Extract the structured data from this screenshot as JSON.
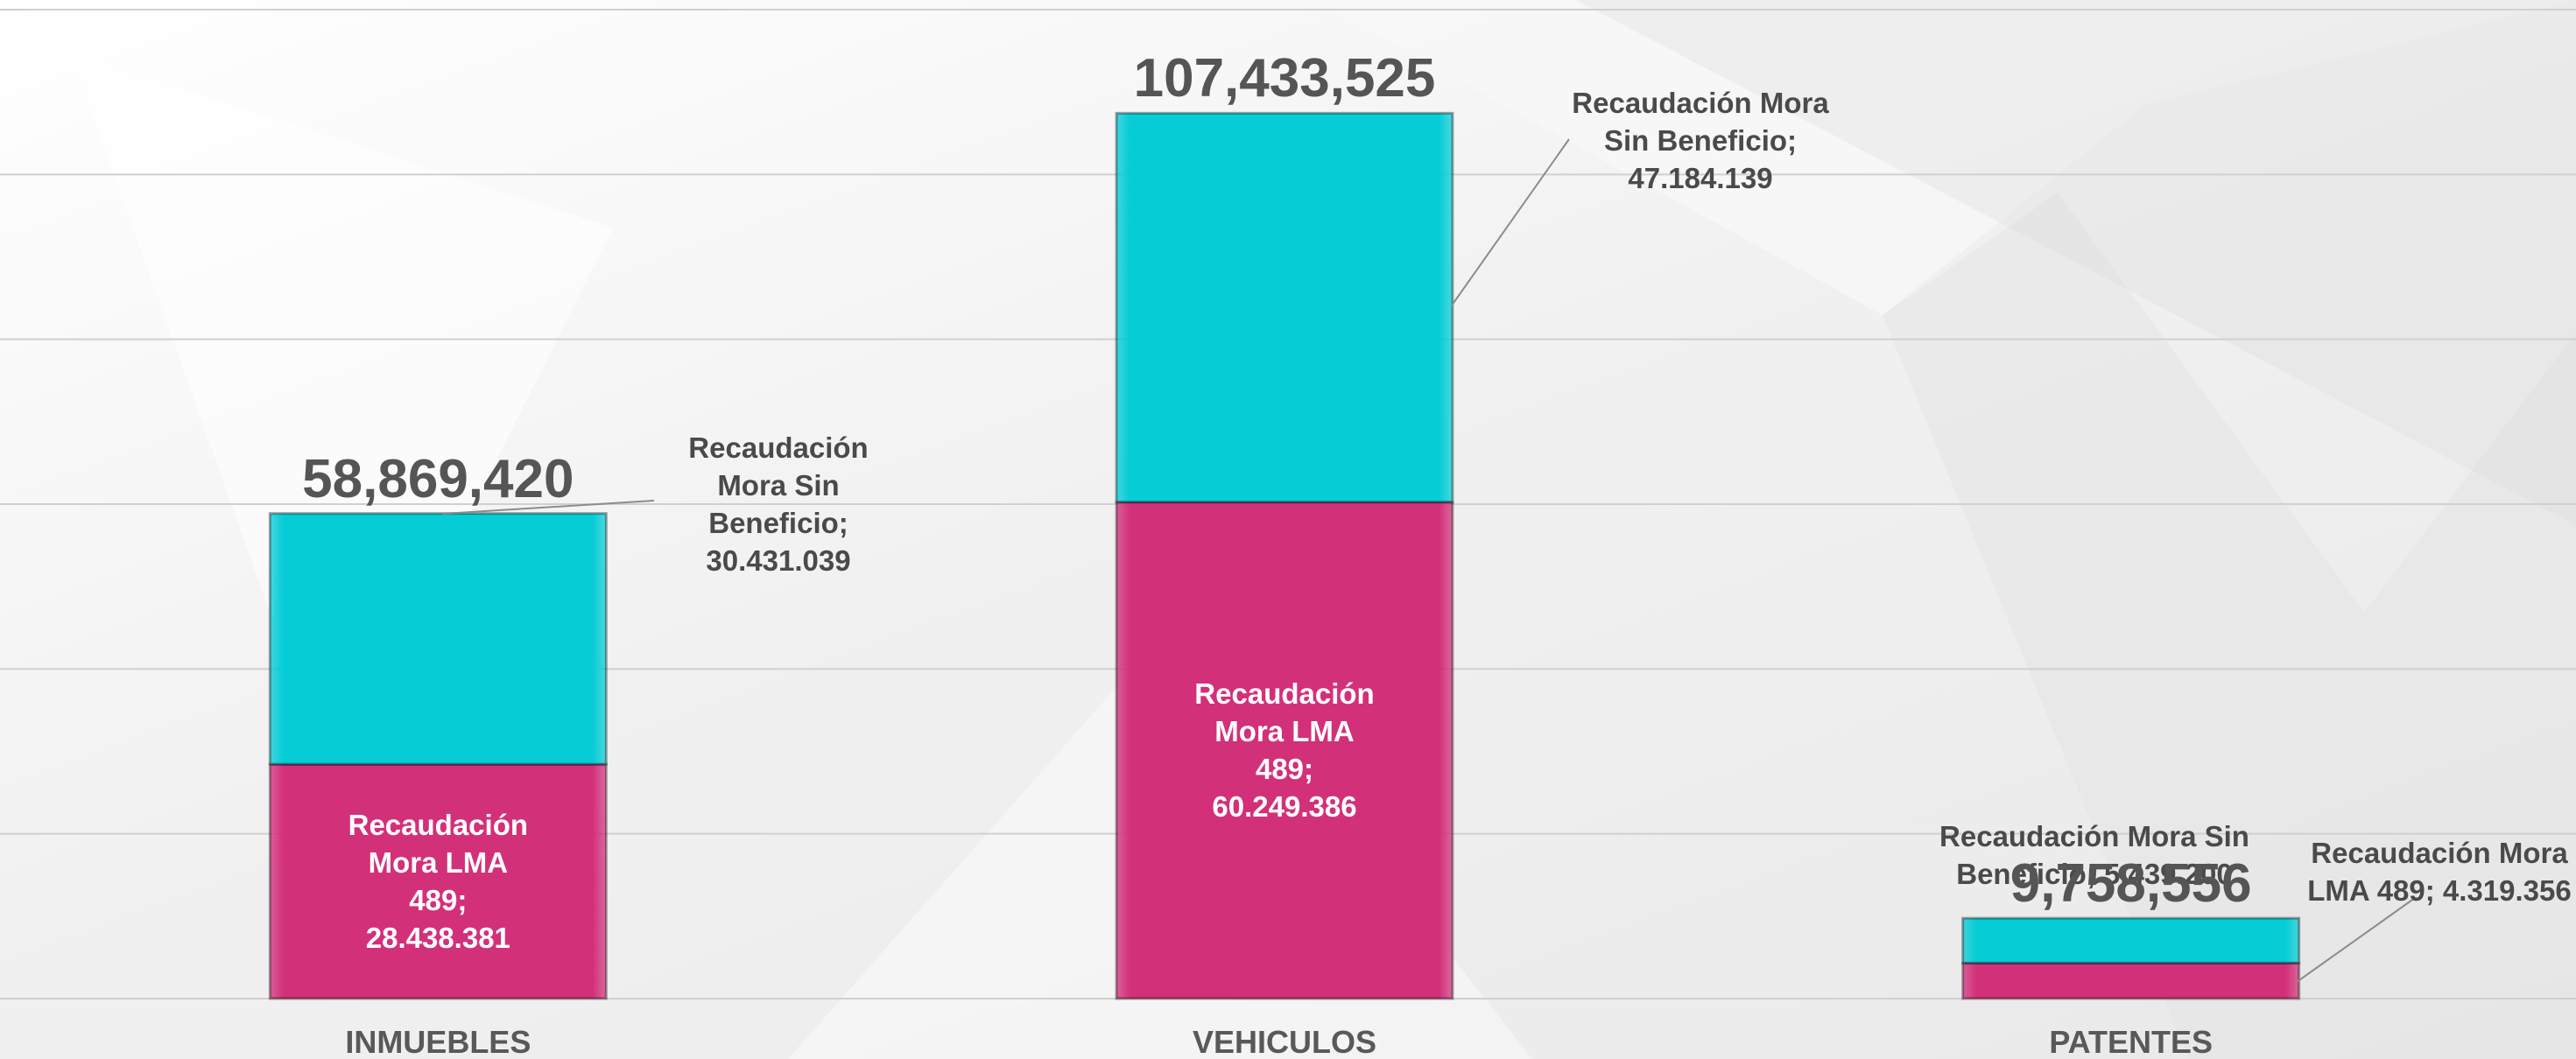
{
  "chart_data": {
    "type": "stacked_bar",
    "categories": [
      "INMUEBLES",
      "VEHICULOS",
      "PATENTES"
    ],
    "series": [
      {
        "name": "Recaudación Mora LMA 489",
        "color": "#d3307a",
        "values": [
          28438381,
          60249386,
          4319356
        ],
        "value_labels": [
          "Recaudación Mora LMA 489; 28.438.381",
          "Recaudación Mora LMA 489; 60.249.386",
          "Recaudación Mora LMA 489; 4.319.356"
        ]
      },
      {
        "name": "Recaudación Mora Sin Beneficio",
        "color": "#06ccd6",
        "values": [
          30431039,
          47184139,
          5439200
        ],
        "value_labels": [
          "Recaudación Mora Sin Beneficio; 30.431.039",
          "Recaudación Mora Sin Beneficio; 47.184.139",
          "Recaudación Mora Sin Beneficio; 5.439.200"
        ]
      }
    ],
    "totals": {
      "values": [
        58869420,
        107433525,
        9758556
      ],
      "value_labels": [
        "58,869,420",
        "107,433,525",
        "9,758,556"
      ]
    },
    "ylim": [
      0,
      120000000
    ],
    "yticks": [
      0,
      20000000,
      40000000,
      60000000,
      80000000,
      100000000,
      120000000
    ],
    "grid": true
  }
}
